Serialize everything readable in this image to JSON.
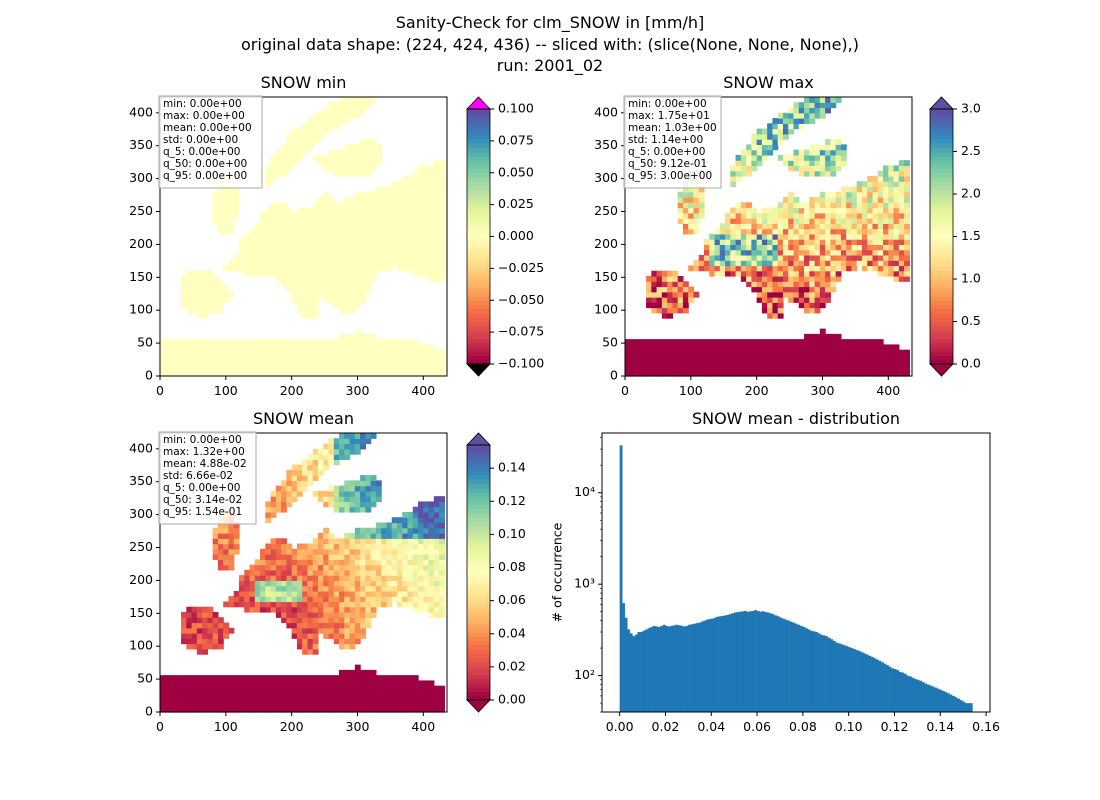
{
  "figure": {
    "title_lines": [
      "Sanity-Check for clm_SNOW in [mm/h]",
      "original data shape: (224, 424, 436) -- sliced with: (slice(None, None, None),)",
      "run: 2001_02"
    ]
  },
  "colors": {
    "histogram_bar": "#1f77b4",
    "spectral_colormap": [
      "#9e0142",
      "#d53e4f",
      "#f46d43",
      "#fdae61",
      "#fee08b",
      "#ffffbf",
      "#e6f598",
      "#abdda4",
      "#66c2a5",
      "#3288bd",
      "#5e4fa2"
    ],
    "min_over_color": "#ff00ff",
    "min_under_color": "#000000",
    "stats_box_border": "#aaaaaa"
  },
  "chart_data": [
    {
      "type": "heatmap",
      "title": "SNOW min",
      "xlim": [
        0,
        436
      ],
      "ylim": [
        0,
        424
      ],
      "x_ticks": [
        "0",
        "100",
        "200",
        "300",
        "400"
      ],
      "y_ticks": [
        "0",
        "50",
        "100",
        "150",
        "200",
        "250",
        "300",
        "350",
        "400"
      ],
      "colorbar": {
        "min": -0.1,
        "max": 0.1,
        "extend": "both",
        "ticks": [
          "-0.100",
          "-0.075",
          "-0.050",
          "-0.025",
          "0.000",
          "0.025",
          "0.050",
          "0.075",
          "0.100"
        ]
      },
      "stats": [
        "min: 0.00e+00",
        "max: 0.00e+00",
        "mean: 0.00e+00",
        "std: 0.00e+00",
        "q_5: 0.00e+00",
        "q_50: 0.00e+00",
        "q_95: 0.00e+00"
      ]
    },
    {
      "type": "heatmap",
      "title": "SNOW max",
      "xlim": [
        0,
        436
      ],
      "ylim": [
        0,
        424
      ],
      "x_ticks": [
        "0",
        "100",
        "200",
        "300",
        "400"
      ],
      "y_ticks": [
        "0",
        "50",
        "100",
        "150",
        "200",
        "250",
        "300",
        "350",
        "400"
      ],
      "colorbar": {
        "min": 0.0,
        "max": 3.0,
        "extend": "both",
        "ticks": [
          "0.0",
          "0.5",
          "1.0",
          "1.5",
          "2.0",
          "2.5",
          "3.0"
        ]
      },
      "stats": [
        "min: 0.00e+00",
        "max: 1.75e+01",
        "mean: 1.03e+00",
        "std: 1.14e+00",
        "q_5: 0.00e+00",
        "q_50: 9.12e-01",
        "q_95: 3.00e+00"
      ]
    },
    {
      "type": "heatmap",
      "title": "SNOW mean",
      "xlim": [
        0,
        436
      ],
      "ylim": [
        0,
        424
      ],
      "x_ticks": [
        "0",
        "100",
        "200",
        "300",
        "400"
      ],
      "y_ticks": [
        "0",
        "50",
        "100",
        "150",
        "200",
        "250",
        "300",
        "350",
        "400"
      ],
      "colorbar": {
        "min": 0.0,
        "max": 0.154,
        "extend": "both",
        "ticks": [
          "0.00",
          "0.02",
          "0.04",
          "0.06",
          "0.08",
          "0.10",
          "0.12",
          "0.14"
        ]
      },
      "stats": [
        "min: 0.00e+00",
        "max: 1.32e+00",
        "mean: 4.88e-02",
        "std: 6.66e-02",
        "q_5: 0.00e+00",
        "q_50: 3.14e-02",
        "q_95: 1.54e-01"
      ]
    },
    {
      "type": "bar",
      "title": "SNOW mean - distribution",
      "xlabel": "",
      "ylabel": "# of occurrence",
      "y_scale": "log",
      "xlim": [
        -0.0077,
        0.1617
      ],
      "ylim": [
        40,
        45000
      ],
      "x_ticks": [
        "0.00",
        "0.02",
        "0.04",
        "0.06",
        "0.08",
        "0.10",
        "0.12",
        "0.14",
        "0.16"
      ],
      "y_ticks": [
        {
          "value": 100,
          "label": "10²"
        },
        {
          "value": 1000,
          "label": "10³"
        },
        {
          "value": 10000,
          "label": "10⁴"
        }
      ],
      "bins": {
        "start": 0.0,
        "end": 0.154,
        "counts": [
          33000,
          620,
          430,
          320,
          290,
          270,
          280,
          300,
          300,
          310,
          320,
          330,
          340,
          350,
          345,
          340,
          350,
          360,
          350,
          345,
          350,
          355,
          360,
          355,
          350,
          345,
          350,
          360,
          365,
          370,
          375,
          380,
          390,
          400,
          410,
          415,
          420,
          430,
          440,
          445,
          450,
          455,
          460,
          470,
          480,
          490,
          495,
          500,
          505,
          510,
          500,
          505,
          510,
          520,
          510,
          500,
          505,
          495,
          490,
          480,
          470,
          455,
          445,
          430,
          420,
          410,
          400,
          390,
          380,
          370,
          360,
          350,
          340,
          330,
          320,
          310,
          305,
          300,
          290,
          280,
          275,
          270,
          260,
          250,
          240,
          230,
          225,
          220,
          215,
          210,
          205,
          200,
          195,
          190,
          185,
          180,
          175,
          170,
          165,
          160,
          155,
          150,
          145,
          140,
          135,
          130,
          125,
          120,
          118,
          115,
          110,
          108,
          105,
          100,
          98,
          95,
          92,
          90,
          88,
          85,
          82,
          80,
          78,
          76,
          74,
          72,
          70,
          68,
          66,
          64,
          62,
          60,
          58,
          56,
          54,
          52,
          50,
          50,
          50
        ]
      }
    }
  ]
}
